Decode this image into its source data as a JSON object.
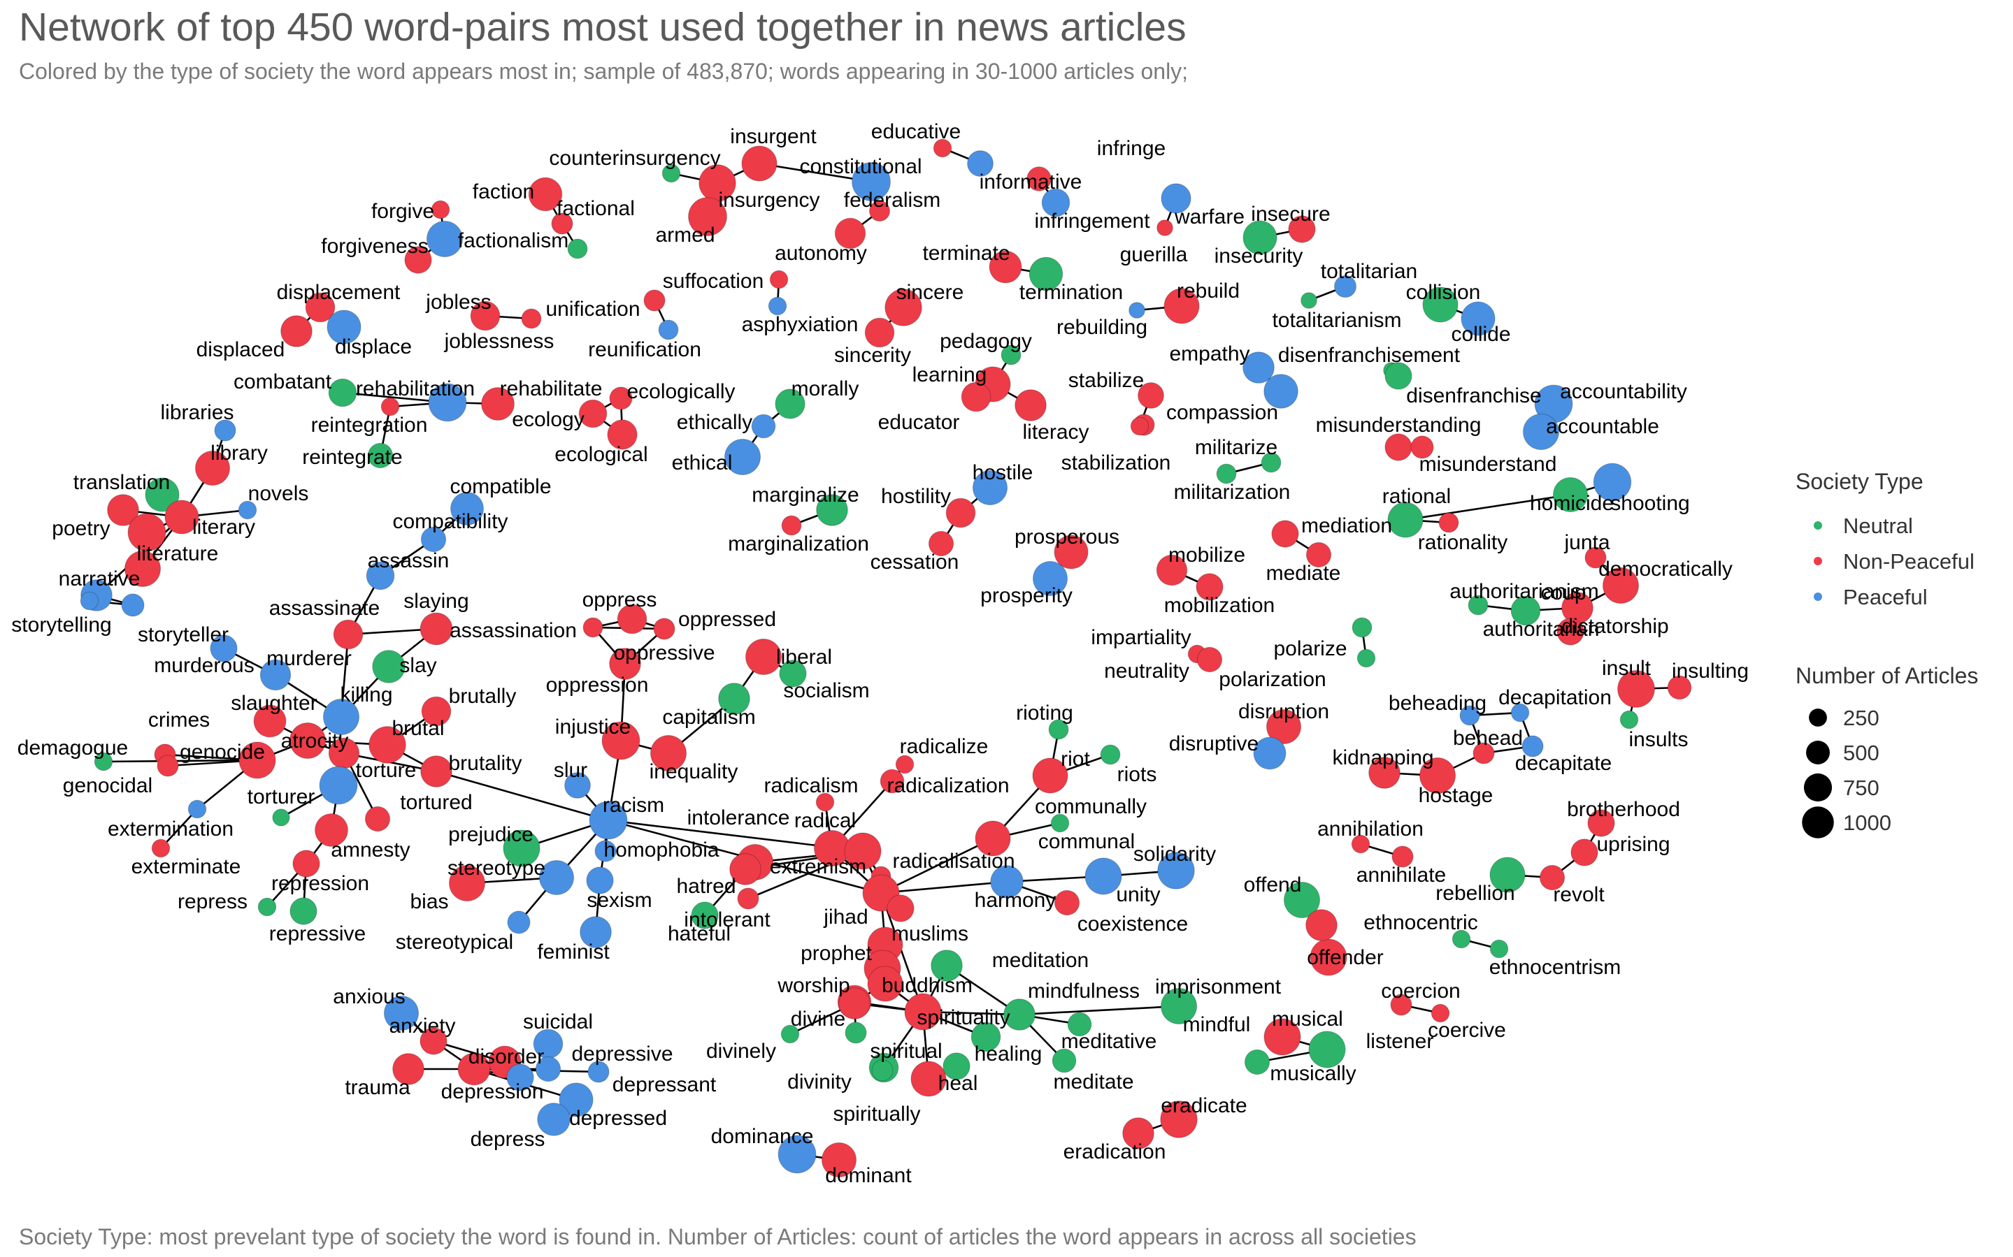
{
  "title": "Network of top 450 word-pairs most used together in news articles",
  "subtitle": "Colored by the type of society the word appears most in; sample of 483,870; words appearing in 30-1000 articles only;",
  "caption": "Society Type: most prevelant type of society the word is found in. Number of Articles: count of articles the word appears in across all societies",
  "chart_data": {
    "type": "network",
    "legend_placement": "right",
    "legend": {
      "color_title": "Society Type",
      "color_entries": [
        {
          "label": "Neutral",
          "color": "#2db46a"
        },
        {
          "label": "Non-Peaceful",
          "color": "#ee3b48"
        },
        {
          "label": "Peaceful",
          "color": "#4a90e2"
        }
      ],
      "size_title": "Number of Articles",
      "size_entries": [
        250,
        500,
        750,
        1000
      ]
    },
    "nodes": [
      {
        "id": "counterinsurgency",
        "t": "N",
        "n": 60
      },
      {
        "id": "insurgent",
        "t": "X",
        "n": 400
      },
      {
        "id": "constitutional",
        "t": "P",
        "n": 500
      },
      {
        "id": "insurgency",
        "t": "X",
        "n": 450
      },
      {
        "id": "armed",
        "t": "X",
        "n": 500
      },
      {
        "id": "federalism",
        "t": "X",
        "n": 90
      },
      {
        "id": "autonomy",
        "t": "X",
        "n": 280
      },
      {
        "id": "educative",
        "t": "X",
        "n": 60
      },
      {
        "id": "informative",
        "t": "P",
        "n": 180
      },
      {
        "id": "infringe",
        "t": "X",
        "n": 150
      },
      {
        "id": "infringement",
        "t": "P",
        "n": 220
      },
      {
        "id": "guerilla",
        "t": "X",
        "n": 40
      },
      {
        "id": "warfare",
        "t": "P",
        "n": 260
      },
      {
        "id": "insecure",
        "t": "X",
        "n": 200
      },
      {
        "id": "insecurity",
        "t": "N",
        "n": 360
      },
      {
        "id": "faction",
        "t": "X",
        "n": 350
      },
      {
        "id": "factional",
        "t": "X",
        "n": 100
      },
      {
        "id": "forgive",
        "t": "X",
        "n": 60
      },
      {
        "id": "factionalism",
        "t": "P",
        "n": 420
      },
      {
        "id": "forgiveness",
        "t": "X",
        "n": 200
      },
      {
        "id": "unlabeled1",
        "t": "N",
        "n": 80
      },
      {
        "id": "terminate",
        "t": "X",
        "n": 320
      },
      {
        "id": "termination",
        "t": "N",
        "n": 350
      },
      {
        "id": "suffocation",
        "t": "X",
        "n": 60
      },
      {
        "id": "asphyxiation",
        "t": "P",
        "n": 60
      },
      {
        "id": "sincere",
        "t": "X",
        "n": 450
      },
      {
        "id": "sincerity",
        "t": "X",
        "n": 250
      },
      {
        "id": "rebuild",
        "t": "X",
        "n": 400
      },
      {
        "id": "rebuilding",
        "t": "P",
        "n": 40
      },
      {
        "id": "totalitarian",
        "t": "P",
        "n": 110
      },
      {
        "id": "totalitarianism",
        "t": "N",
        "n": 40
      },
      {
        "id": "collision",
        "t": "N",
        "n": 400
      },
      {
        "id": "collide",
        "t": "P",
        "n": 360
      },
      {
        "id": "displacement",
        "t": "X",
        "n": 250
      },
      {
        "id": "displaced",
        "t": "X",
        "n": 300
      },
      {
        "id": "displace",
        "t": "P",
        "n": 360
      },
      {
        "id": "jobless",
        "t": "X",
        "n": 250
      },
      {
        "id": "joblessness",
        "t": "X",
        "n": 80
      },
      {
        "id": "unification",
        "t": "X",
        "n": 100
      },
      {
        "id": "reunification",
        "t": "P",
        "n": 80
      },
      {
        "id": "pedagogy",
        "t": "N",
        "n": 80
      },
      {
        "id": "learning",
        "t": "X",
        "n": 400
      },
      {
        "id": "educator",
        "t": "X",
        "n": 250
      },
      {
        "id": "literacy",
        "t": "X",
        "n": 300
      },
      {
        "id": "empathy",
        "t": "P",
        "n": 300
      },
      {
        "id": "disenfranchisement",
        "t": "P",
        "n": 370
      },
      {
        "id": "disenfranchise",
        "t": "N",
        "n": 40
      },
      {
        "id": "unlabeled2",
        "t": "N",
        "n": 200
      },
      {
        "id": "combatant",
        "t": "N",
        "n": 220
      },
      {
        "id": "rehabilitation",
        "t": "P",
        "n": 480
      },
      {
        "id": "rehabilitate",
        "t": "X",
        "n": 340
      },
      {
        "id": "reintegration",
        "t": "X",
        "n": 60
      },
      {
        "id": "reintegrate",
        "t": "N",
        "n": 160
      },
      {
        "id": "ecologically",
        "t": "X",
        "n": 120
      },
      {
        "id": "ecology",
        "t": "X",
        "n": 220
      },
      {
        "id": "ecological",
        "t": "X",
        "n": 260
      },
      {
        "id": "morally",
        "t": "N",
        "n": 260
      },
      {
        "id": "ethically",
        "t": "P",
        "n": 140
      },
      {
        "id": "ethical",
        "t": "P",
        "n": 420
      },
      {
        "id": "stabilize",
        "t": "X",
        "n": 180
      },
      {
        "id": "compassion",
        "t": "X",
        "n": 100
      },
      {
        "id": "stabilization",
        "t": "X",
        "n": 60
      },
      {
        "id": "accountability",
        "t": "P",
        "n": 480
      },
      {
        "id": "accountable",
        "t": "P",
        "n": 420
      },
      {
        "id": "misunderstanding",
        "t": "X",
        "n": 200
      },
      {
        "id": "misunderstand",
        "t": "X",
        "n": 120
      },
      {
        "id": "libraries",
        "t": "P",
        "n": 100
      },
      {
        "id": "library",
        "t": "X",
        "n": 380
      },
      {
        "id": "novels",
        "t": "P",
        "n": 60
      },
      {
        "id": "translation",
        "t": "N",
        "n": 360
      },
      {
        "id": "poetry",
        "t": "X",
        "n": 300
      },
      {
        "id": "literary",
        "t": "X",
        "n": 360
      },
      {
        "id": "literature",
        "t": "X",
        "n": 480
      },
      {
        "id": "unlabeled3",
        "t": "X",
        "n": 420
      },
      {
        "id": "narrative",
        "t": "P",
        "n": 300
      },
      {
        "id": "storytelling",
        "t": "P",
        "n": 60
      },
      {
        "id": "storyteller",
        "t": "P",
        "n": 120
      },
      {
        "id": "compatible",
        "t": "P",
        "n": 340
      },
      {
        "id": "compatibility",
        "t": "P",
        "n": 160
      },
      {
        "id": "assassin",
        "t": "P",
        "n": 220
      },
      {
        "id": "assassinate",
        "t": "X",
        "n": 250
      },
      {
        "id": "slaying",
        "t": "N",
        "n": 40
      },
      {
        "id": "assassination",
        "t": "X",
        "n": 320
      },
      {
        "id": "murderous",
        "t": "P",
        "n": 200
      },
      {
        "id": "murderer",
        "t": "P",
        "n": 280
      },
      {
        "id": "slay",
        "t": "N",
        "n": 330
      },
      {
        "id": "militarize",
        "t": "N",
        "n": 80
      },
      {
        "id": "militarization",
        "t": "N",
        "n": 80
      },
      {
        "id": "marginalize",
        "t": "N",
        "n": 300
      },
      {
        "id": "marginalization",
        "t": "X",
        "n": 80
      },
      {
        "id": "hostile",
        "t": "P",
        "n": 380
      },
      {
        "id": "hostility",
        "t": "X",
        "n": 250
      },
      {
        "id": "cessation",
        "t": "X",
        "n": 160
      },
      {
        "id": "prosperous",
        "t": "X",
        "n": 360
      },
      {
        "id": "prosperity",
        "t": "P",
        "n": 380
      },
      {
        "id": "rational",
        "t": "N",
        "n": 400
      },
      {
        "id": "rationality",
        "t": "X",
        "n": 80
      },
      {
        "id": "homicide",
        "t": "N",
        "n": 380
      },
      {
        "id": "shooting",
        "t": "P",
        "n": 470
      },
      {
        "id": "mediation",
        "t": "X",
        "n": 200
      },
      {
        "id": "mediate",
        "t": "X",
        "n": 160
      },
      {
        "id": "mobilize",
        "t": "X",
        "n": 280
      },
      {
        "id": "mobilization",
        "t": "X",
        "n": 200
      },
      {
        "id": "junta",
        "t": "X",
        "n": 100
      },
      {
        "id": "democratically",
        "t": "X",
        "n": 420
      },
      {
        "id": "authoritarianism",
        "t": "N",
        "n": 80
      },
      {
        "id": "authoritarian",
        "t": "N",
        "n": 250
      },
      {
        "id": "coup",
        "t": "X",
        "n": 300
      },
      {
        "id": "dictatorship",
        "t": "X",
        "n": 200
      },
      {
        "id": "oppress",
        "t": "X",
        "n": 80
      },
      {
        "id": "oppressed",
        "t": "X",
        "n": 250
      },
      {
        "id": "oppressive",
        "t": "X",
        "n": 100
      },
      {
        "id": "oppression",
        "t": "X",
        "n": 300
      },
      {
        "id": "liberal",
        "t": "X",
        "n": 420
      },
      {
        "id": "socialism",
        "t": "N",
        "n": 200
      },
      {
        "id": "capitalism",
        "t": "N",
        "n": 300
      },
      {
        "id": "injustice",
        "t": "X",
        "n": 480
      },
      {
        "id": "inequality",
        "t": "X",
        "n": 420
      },
      {
        "id": "impartiality",
        "t": "X",
        "n": 60
      },
      {
        "id": "neutrality",
        "t": "X",
        "n": 160
      },
      {
        "id": "polarize",
        "t": "N",
        "n": 80
      },
      {
        "id": "polarization",
        "t": "N",
        "n": 60
      },
      {
        "id": "insult",
        "t": "X",
        "n": 460
      },
      {
        "id": "insulting",
        "t": "X",
        "n": 140
      },
      {
        "id": "insults",
        "t": "N",
        "n": 60
      },
      {
        "id": "beheading",
        "t": "P",
        "n": 80
      },
      {
        "id": "decapitation",
        "t": "P",
        "n": 60
      },
      {
        "id": "behead",
        "t": "X",
        "n": 100
      },
      {
        "id": "decapitate",
        "t": "P",
        "n": 100
      },
      {
        "id": "hostage",
        "t": "X",
        "n": 420
      },
      {
        "id": "kidnapping",
        "t": "X",
        "n": 300
      },
      {
        "id": "disruption",
        "t": "X",
        "n": 380
      },
      {
        "id": "disruptive",
        "t": "P",
        "n": 320
      },
      {
        "id": "crimes",
        "t": "X",
        "n": 100
      },
      {
        "id": "slaughter",
        "t": "X",
        "n": 320
      },
      {
        "id": "killing",
        "t": "P",
        "n": 420
      },
      {
        "id": "demagogue",
        "t": "N",
        "n": 60
      },
      {
        "id": "genocide",
        "t": "X",
        "n": 440
      },
      {
        "id": "atrocity",
        "t": "X",
        "n": 420
      },
      {
        "id": "brutal",
        "t": "X",
        "n": 450
      },
      {
        "id": "brutally",
        "t": "X",
        "n": 250
      },
      {
        "id": "torture",
        "t": "X",
        "n": 280
      },
      {
        "id": "brutality",
        "t": "X",
        "n": 300
      },
      {
        "id": "genocidal",
        "t": "X",
        "n": 100
      },
      {
        "id": "torturer",
        "t": "P",
        "n": 480
      },
      {
        "id": "tortured",
        "t": "X",
        "n": 160
      },
      {
        "id": "exterminate",
        "t": "X",
        "n": 60
      },
      {
        "id": "extermination",
        "t": "P",
        "n": 60
      },
      {
        "id": "amnesty",
        "t": "X",
        "n": 340
      },
      {
        "id": "repression",
        "t": "X",
        "n": 200
      },
      {
        "id": "repress",
        "t": "N",
        "n": 60
      },
      {
        "id": "repressive",
        "t": "N",
        "n": 200
      },
      {
        "id": "unlabeled4",
        "t": "N",
        "n": 50
      },
      {
        "id": "rioting",
        "t": "N",
        "n": 80
      },
      {
        "id": "riot",
        "t": "X",
        "n": 400
      },
      {
        "id": "riots",
        "t": "N",
        "n": 80
      },
      {
        "id": "communally",
        "t": "N",
        "n": 60
      },
      {
        "id": "communal",
        "t": "X",
        "n": 400
      },
      {
        "id": "radicalize",
        "t": "X",
        "n": 60
      },
      {
        "id": "radicalism",
        "t": "X",
        "n": 60
      },
      {
        "id": "radicalization",
        "t": "X",
        "n": 140
      },
      {
        "id": "radical",
        "t": "X",
        "n": 420
      },
      {
        "id": "intolerance",
        "t": "X",
        "n": 420
      },
      {
        "id": "extremism",
        "t": "X",
        "n": 440
      },
      {
        "id": "radicalisation",
        "t": "X",
        "n": 80
      },
      {
        "id": "jihad",
        "t": "X",
        "n": 440
      },
      {
        "id": "hatred",
        "t": "X",
        "n": 300
      },
      {
        "id": "intolerant",
        "t": "N",
        "n": 200
      },
      {
        "id": "hateful",
        "t": "X",
        "n": 100
      },
      {
        "id": "unlabeled5",
        "t": "X",
        "n": 200
      },
      {
        "id": "slur",
        "t": "P",
        "n": 180
      },
      {
        "id": "racism",
        "t": "P",
        "n": 480
      },
      {
        "id": "prejudice",
        "t": "N",
        "n": 440
      },
      {
        "id": "homophobia",
        "t": "P",
        "n": 100
      },
      {
        "id": "stereotype",
        "t": "P",
        "n": 380
      },
      {
        "id": "bias",
        "t": "X",
        "n": 420
      },
      {
        "id": "sexism",
        "t": "P",
        "n": 200
      },
      {
        "id": "stereotypical",
        "t": "P",
        "n": 120
      },
      {
        "id": "feminist",
        "t": "P",
        "n": 300
      },
      {
        "id": "solidarity",
        "t": "P",
        "n": 450
      },
      {
        "id": "unity",
        "t": "P",
        "n": 440
      },
      {
        "id": "harmony",
        "t": "P",
        "n": 330
      },
      {
        "id": "coexistence",
        "t": "X",
        "n": 160
      },
      {
        "id": "muslims",
        "t": "X",
        "n": 400
      },
      {
        "id": "prophet",
        "t": "X",
        "n": 440
      },
      {
        "id": "buddhism",
        "t": "X",
        "n": 400
      },
      {
        "id": "worship",
        "t": "X",
        "n": 350
      },
      {
        "id": "meditation",
        "t": "N",
        "n": 300
      },
      {
        "id": "divine",
        "t": "X",
        "n": 300
      },
      {
        "id": "spirituality",
        "t": "X",
        "n": 440
      },
      {
        "id": "mindfulness",
        "t": "N",
        "n": 300
      },
      {
        "id": "imprisonment",
        "t": "P",
        "n": 100
      },
      {
        "id": "mindful",
        "t": "N",
        "n": 420
      },
      {
        "id": "divinely",
        "t": "N",
        "n": 60
      },
      {
        "id": "divinity",
        "t": "N",
        "n": 100
      },
      {
        "id": "healing",
        "t": "N",
        "n": 250
      },
      {
        "id": "meditative",
        "t": "N",
        "n": 140
      },
      {
        "id": "spiritual",
        "t": "N",
        "n": 250
      },
      {
        "id": "heal",
        "t": "X",
        "n": 400
      },
      {
        "id": "meditate",
        "t": "N",
        "n": 140
      },
      {
        "id": "spiritually",
        "t": "N",
        "n": 100
      },
      {
        "id": "unlabeled6",
        "t": "N",
        "n": 200
      },
      {
        "id": "annihilation",
        "t": "X",
        "n": 60
      },
      {
        "id": "annihilate",
        "t": "X",
        "n": 100
      },
      {
        "id": "brotherhood",
        "t": "X",
        "n": 200
      },
      {
        "id": "uprising",
        "t": "X",
        "n": 200
      },
      {
        "id": "rebellion",
        "t": "N",
        "n": 400
      },
      {
        "id": "revolt",
        "t": "X",
        "n": 160
      },
      {
        "id": "offend",
        "t": "N",
        "n": 420
      },
      {
        "id": "ethnocentric",
        "t": "N",
        "n": 60
      },
      {
        "id": "ethnocentrism",
        "t": "N",
        "n": 60
      },
      {
        "id": "offender",
        "t": "X",
        "n": 440
      },
      {
        "id": "unlabeled7",
        "t": "X",
        "n": 300
      },
      {
        "id": "coercion",
        "t": "X",
        "n": 100
      },
      {
        "id": "coercive",
        "t": "X",
        "n": 60
      },
      {
        "id": "musical",
        "t": "X",
        "n": 440
      },
      {
        "id": "listener",
        "t": "N",
        "n": 440
      },
      {
        "id": "musically",
        "t": "N",
        "n": 160
      },
      {
        "id": "anxious",
        "t": "P",
        "n": 380
      },
      {
        "id": "anxiety",
        "t": "X",
        "n": 200
      },
      {
        "id": "suicidal",
        "t": "P",
        "n": 250
      },
      {
        "id": "disorder",
        "t": "X",
        "n": 320
      },
      {
        "id": "depressive",
        "t": "P",
        "n": 160
      },
      {
        "id": "trauma",
        "t": "X",
        "n": 300
      },
      {
        "id": "depression",
        "t": "X",
        "n": 320
      },
      {
        "id": "depressant",
        "t": "P",
        "n": 100
      },
      {
        "id": "depressed",
        "t": "P",
        "n": 360
      },
      {
        "id": "depress",
        "t": "P",
        "n": 330
      },
      {
        "id": "unlabeled8",
        "t": "P",
        "n": 200
      },
      {
        "id": "dominance",
        "t": "P",
        "n": 480
      },
      {
        "id": "dominant",
        "t": "X",
        "n": 380
      },
      {
        "id": "eradicate",
        "t": "X",
        "n": 450
      },
      {
        "id": "eradication",
        "t": "X",
        "n": 300
      }
    ]
  }
}
